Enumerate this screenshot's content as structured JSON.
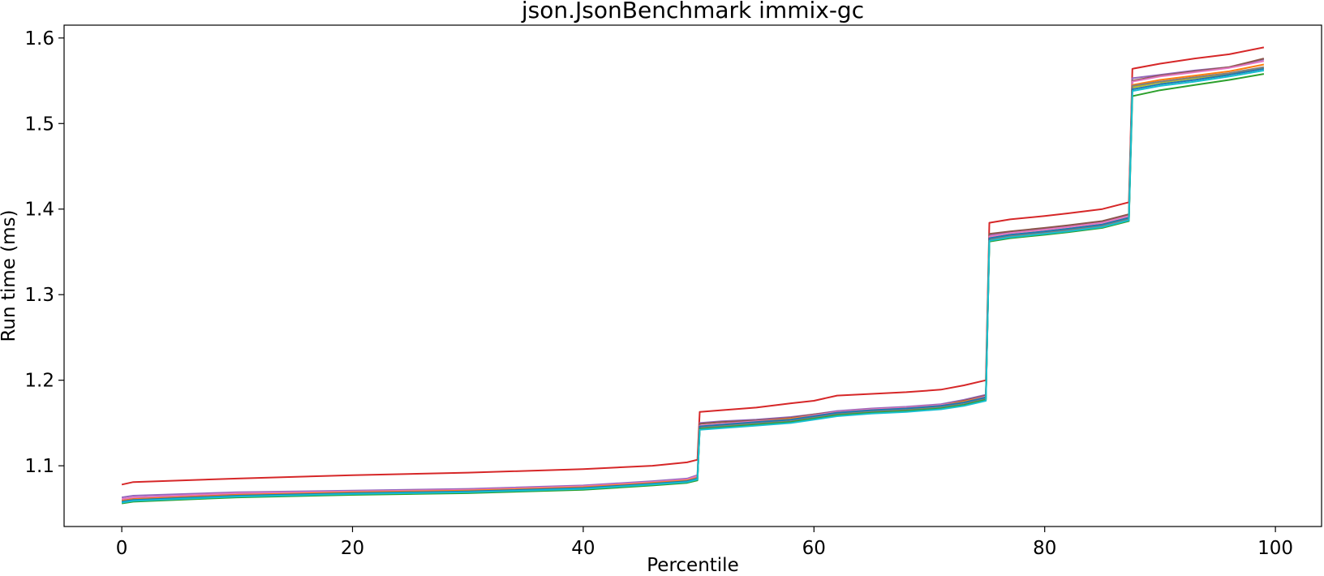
{
  "chart_data": {
    "type": "line",
    "title": "json.JsonBenchmark immix-gc",
    "xlabel": "Percentile",
    "ylabel": "Run time (ms)",
    "xlim": [
      -5,
      104
    ],
    "ylim": [
      1.029,
      1.615
    ],
    "xticks": [
      0,
      20,
      40,
      60,
      80,
      100
    ],
    "yticks": [
      1.1,
      1.2,
      1.3,
      1.4,
      1.5,
      1.6
    ],
    "ytick_labels": [
      "1.1",
      "1.2",
      "1.3",
      "1.4",
      "1.5",
      "1.6"
    ],
    "grid": false,
    "legend": "none",
    "series": [
      {
        "color": "#d62728",
        "values": [
          [
            0,
            1.078
          ],
          [
            1,
            1.081
          ],
          [
            10,
            1.085
          ],
          [
            20,
            1.089
          ],
          [
            30,
            1.092
          ],
          [
            40,
            1.096
          ],
          [
            46,
            1.1
          ],
          [
            49,
            1.104
          ],
          [
            49.9,
            1.107
          ],
          [
            50.1,
            1.163
          ],
          [
            52,
            1.165
          ],
          [
            55,
            1.168
          ],
          [
            58,
            1.173
          ],
          [
            60,
            1.176
          ],
          [
            62,
            1.182
          ],
          [
            65,
            1.184
          ],
          [
            68,
            1.186
          ],
          [
            71,
            1.189
          ],
          [
            73,
            1.194
          ],
          [
            74.9,
            1.2
          ],
          [
            75.2,
            1.384
          ],
          [
            77,
            1.388
          ],
          [
            80,
            1.392
          ],
          [
            82,
            1.395
          ],
          [
            85,
            1.4
          ],
          [
            87.3,
            1.408
          ],
          [
            87.6,
            1.564
          ],
          [
            90,
            1.57
          ],
          [
            93,
            1.576
          ],
          [
            96,
            1.581
          ],
          [
            99,
            1.589
          ]
        ]
      },
      {
        "color": "#9467bd",
        "values": [
          [
            0,
            1.063
          ],
          [
            1,
            1.065
          ],
          [
            10,
            1.069
          ],
          [
            20,
            1.071
          ],
          [
            30,
            1.073
          ],
          [
            40,
            1.077
          ],
          [
            46,
            1.082
          ],
          [
            49,
            1.085
          ],
          [
            49.9,
            1.089
          ],
          [
            50.1,
            1.15
          ],
          [
            52,
            1.152
          ],
          [
            55,
            1.154
          ],
          [
            58,
            1.157
          ],
          [
            60,
            1.16
          ],
          [
            62,
            1.164
          ],
          [
            65,
            1.167
          ],
          [
            68,
            1.169
          ],
          [
            71,
            1.172
          ],
          [
            73,
            1.177
          ],
          [
            74.9,
            1.183
          ],
          [
            75.2,
            1.369
          ],
          [
            77,
            1.373
          ],
          [
            80,
            1.377
          ],
          [
            82,
            1.38
          ],
          [
            85,
            1.385
          ],
          [
            87.3,
            1.393
          ],
          [
            87.6,
            1.553
          ],
          [
            90,
            1.557
          ],
          [
            93,
            1.562
          ],
          [
            96,
            1.566
          ],
          [
            99,
            1.575
          ]
        ]
      },
      {
        "color": "#8c564b",
        "values": [
          [
            0,
            1.06
          ],
          [
            1,
            1.062
          ],
          [
            10,
            1.067
          ],
          [
            20,
            1.07
          ],
          [
            30,
            1.072
          ],
          [
            40,
            1.076
          ],
          [
            46,
            1.08
          ],
          [
            49,
            1.083
          ],
          [
            49.9,
            1.087
          ],
          [
            50.1,
            1.149
          ],
          [
            52,
            1.151
          ],
          [
            55,
            1.153
          ],
          [
            58,
            1.156
          ],
          [
            60,
            1.16
          ],
          [
            62,
            1.163
          ],
          [
            65,
            1.166
          ],
          [
            68,
            1.168
          ],
          [
            71,
            1.171
          ],
          [
            73,
            1.176
          ],
          [
            74.9,
            1.182
          ],
          [
            75.2,
            1.371
          ],
          [
            77,
            1.374
          ],
          [
            80,
            1.378
          ],
          [
            82,
            1.381
          ],
          [
            85,
            1.386
          ],
          [
            87.3,
            1.394
          ],
          [
            87.6,
            1.55
          ],
          [
            90,
            1.556
          ],
          [
            93,
            1.561
          ],
          [
            96,
            1.566
          ],
          [
            99,
            1.576
          ]
        ]
      },
      {
        "color": "#e377c2",
        "values": [
          [
            0,
            1.061
          ],
          [
            1,
            1.063
          ],
          [
            10,
            1.068
          ],
          [
            20,
            1.07
          ],
          [
            30,
            1.072
          ],
          [
            40,
            1.076
          ],
          [
            46,
            1.081
          ],
          [
            49,
            1.084
          ],
          [
            49.9,
            1.088
          ],
          [
            50.1,
            1.147
          ],
          [
            52,
            1.149
          ],
          [
            55,
            1.152
          ],
          [
            58,
            1.155
          ],
          [
            60,
            1.159
          ],
          [
            62,
            1.163
          ],
          [
            65,
            1.166
          ],
          [
            68,
            1.168
          ],
          [
            71,
            1.171
          ],
          [
            73,
            1.175
          ],
          [
            74.9,
            1.181
          ],
          [
            75.2,
            1.368
          ],
          [
            77,
            1.372
          ],
          [
            80,
            1.376
          ],
          [
            82,
            1.379
          ],
          [
            85,
            1.384
          ],
          [
            87.3,
            1.392
          ],
          [
            87.6,
            1.549
          ],
          [
            90,
            1.555
          ],
          [
            93,
            1.56
          ],
          [
            96,
            1.565
          ],
          [
            99,
            1.573
          ]
        ]
      },
      {
        "color": "#ff7f0e",
        "values": [
          [
            0,
            1.059
          ],
          [
            1,
            1.061
          ],
          [
            10,
            1.066
          ],
          [
            20,
            1.069
          ],
          [
            30,
            1.071
          ],
          [
            40,
            1.075
          ],
          [
            46,
            1.08
          ],
          [
            49,
            1.083
          ],
          [
            49.9,
            1.086
          ],
          [
            50.1,
            1.146
          ],
          [
            52,
            1.148
          ],
          [
            55,
            1.151
          ],
          [
            58,
            1.155
          ],
          [
            60,
            1.158
          ],
          [
            62,
            1.162
          ],
          [
            65,
            1.165
          ],
          [
            68,
            1.167
          ],
          [
            71,
            1.17
          ],
          [
            73,
            1.175
          ],
          [
            74.9,
            1.18
          ],
          [
            75.2,
            1.366
          ],
          [
            77,
            1.37
          ],
          [
            80,
            1.374
          ],
          [
            82,
            1.377
          ],
          [
            85,
            1.382
          ],
          [
            87.3,
            1.39
          ],
          [
            87.6,
            1.545
          ],
          [
            90,
            1.551
          ],
          [
            93,
            1.556
          ],
          [
            96,
            1.561
          ],
          [
            99,
            1.569
          ]
        ]
      },
      {
        "color": "#bcbd22",
        "values": [
          [
            0,
            1.058
          ],
          [
            1,
            1.06
          ],
          [
            10,
            1.065
          ],
          [
            20,
            1.068
          ],
          [
            30,
            1.07
          ],
          [
            40,
            1.074
          ],
          [
            46,
            1.079
          ],
          [
            49,
            1.082
          ],
          [
            49.9,
            1.085
          ],
          [
            50.1,
            1.145
          ],
          [
            52,
            1.147
          ],
          [
            55,
            1.15
          ],
          [
            58,
            1.154
          ],
          [
            60,
            1.157
          ],
          [
            62,
            1.161
          ],
          [
            65,
            1.164
          ],
          [
            68,
            1.166
          ],
          [
            71,
            1.169
          ],
          [
            73,
            1.174
          ],
          [
            74.9,
            1.179
          ],
          [
            75.2,
            1.365
          ],
          [
            77,
            1.369
          ],
          [
            80,
            1.373
          ],
          [
            82,
            1.376
          ],
          [
            85,
            1.381
          ],
          [
            87.3,
            1.389
          ],
          [
            87.6,
            1.542
          ],
          [
            90,
            1.548
          ],
          [
            93,
            1.553
          ],
          [
            96,
            1.558
          ],
          [
            99,
            1.565
          ]
        ]
      },
      {
        "color": "#7f7f7f",
        "values": [
          [
            0,
            1.057
          ],
          [
            1,
            1.059
          ],
          [
            10,
            1.064
          ],
          [
            20,
            1.067
          ],
          [
            30,
            1.069
          ],
          [
            40,
            1.073
          ],
          [
            46,
            1.078
          ],
          [
            49,
            1.081
          ],
          [
            49.9,
            1.084
          ],
          [
            50.1,
            1.144
          ],
          [
            52,
            1.146
          ],
          [
            55,
            1.149
          ],
          [
            58,
            1.152
          ],
          [
            60,
            1.156
          ],
          [
            62,
            1.16
          ],
          [
            65,
            1.163
          ],
          [
            68,
            1.165
          ],
          [
            71,
            1.168
          ],
          [
            73,
            1.172
          ],
          [
            74.9,
            1.178
          ],
          [
            75.2,
            1.364
          ],
          [
            77,
            1.368
          ],
          [
            80,
            1.372
          ],
          [
            82,
            1.375
          ],
          [
            85,
            1.38
          ],
          [
            87.3,
            1.388
          ],
          [
            87.6,
            1.544
          ],
          [
            90,
            1.549
          ],
          [
            93,
            1.554
          ],
          [
            96,
            1.559
          ],
          [
            99,
            1.566
          ]
        ]
      },
      {
        "color": "#1f77b4",
        "values": [
          [
            0,
            1.058
          ],
          [
            1,
            1.06
          ],
          [
            10,
            1.065
          ],
          [
            20,
            1.068
          ],
          [
            30,
            1.07
          ],
          [
            40,
            1.074
          ],
          [
            46,
            1.079
          ],
          [
            49,
            1.082
          ],
          [
            49.9,
            1.085
          ],
          [
            50.1,
            1.146
          ],
          [
            52,
            1.148
          ],
          [
            55,
            1.151
          ],
          [
            58,
            1.154
          ],
          [
            60,
            1.158
          ],
          [
            62,
            1.162
          ],
          [
            65,
            1.165
          ],
          [
            68,
            1.167
          ],
          [
            71,
            1.17
          ],
          [
            73,
            1.174
          ],
          [
            74.9,
            1.18
          ],
          [
            75.2,
            1.366
          ],
          [
            77,
            1.37
          ],
          [
            80,
            1.374
          ],
          [
            82,
            1.377
          ],
          [
            85,
            1.382
          ],
          [
            87.3,
            1.39
          ],
          [
            87.6,
            1.54
          ],
          [
            90,
            1.546
          ],
          [
            93,
            1.551
          ],
          [
            96,
            1.557
          ],
          [
            99,
            1.564
          ]
        ]
      },
      {
        "color": "#2ca02c",
        "values": [
          [
            0,
            1.056
          ],
          [
            1,
            1.058
          ],
          [
            10,
            1.063
          ],
          [
            20,
            1.066
          ],
          [
            30,
            1.068
          ],
          [
            40,
            1.072
          ],
          [
            46,
            1.077
          ],
          [
            49,
            1.08
          ],
          [
            49.9,
            1.083
          ],
          [
            50.1,
            1.143
          ],
          [
            52,
            1.145
          ],
          [
            55,
            1.148
          ],
          [
            58,
            1.151
          ],
          [
            60,
            1.155
          ],
          [
            62,
            1.159
          ],
          [
            65,
            1.162
          ],
          [
            68,
            1.164
          ],
          [
            71,
            1.167
          ],
          [
            73,
            1.171
          ],
          [
            74.9,
            1.177
          ],
          [
            75.2,
            1.362
          ],
          [
            77,
            1.366
          ],
          [
            80,
            1.37
          ],
          [
            82,
            1.373
          ],
          [
            85,
            1.378
          ],
          [
            87.3,
            1.386
          ],
          [
            87.6,
            1.532
          ],
          [
            90,
            1.539
          ],
          [
            93,
            1.545
          ],
          [
            96,
            1.551
          ],
          [
            99,
            1.558
          ]
        ]
      },
      {
        "color": "#17becf",
        "values": [
          [
            0,
            1.057
          ],
          [
            1,
            1.059
          ],
          [
            10,
            1.064
          ],
          [
            20,
            1.067
          ],
          [
            30,
            1.069
          ],
          [
            40,
            1.073
          ],
          [
            46,
            1.078
          ],
          [
            49,
            1.081
          ],
          [
            49.9,
            1.084
          ],
          [
            50.1,
            1.142
          ],
          [
            52,
            1.144
          ],
          [
            55,
            1.147
          ],
          [
            58,
            1.15
          ],
          [
            60,
            1.154
          ],
          [
            62,
            1.158
          ],
          [
            65,
            1.161
          ],
          [
            68,
            1.163
          ],
          [
            71,
            1.166
          ],
          [
            73,
            1.17
          ],
          [
            74.9,
            1.176
          ],
          [
            75.2,
            1.363
          ],
          [
            77,
            1.367
          ],
          [
            80,
            1.371
          ],
          [
            82,
            1.374
          ],
          [
            85,
            1.379
          ],
          [
            87.3,
            1.387
          ],
          [
            87.6,
            1.538
          ],
          [
            90,
            1.544
          ],
          [
            93,
            1.549
          ],
          [
            96,
            1.555
          ],
          [
            99,
            1.562
          ]
        ]
      }
    ]
  }
}
